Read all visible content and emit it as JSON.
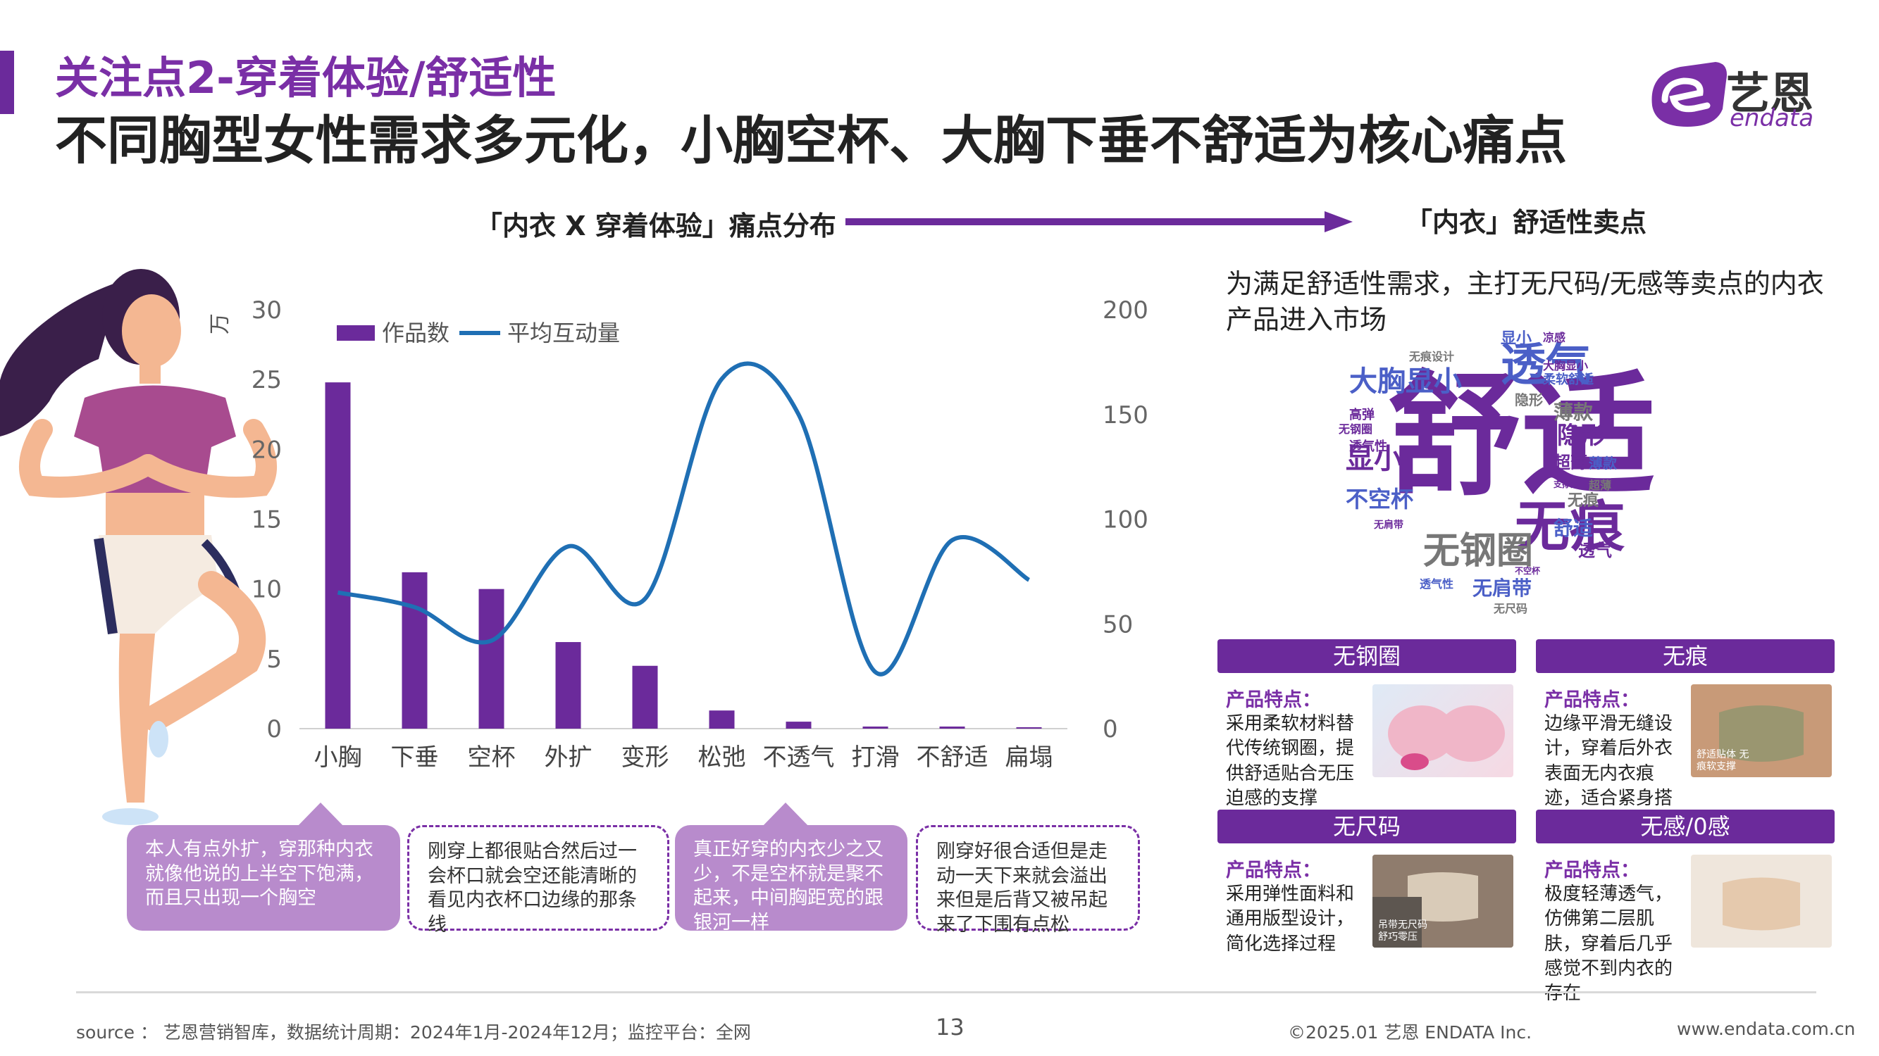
{
  "header": {
    "title_line1": "关注点2-穿着体验/舒适性",
    "title_line2": "不同胸型女性需求多元化，小胸空杯、大胸下垂不舒适为核心痛点",
    "brand_name": "艺恩",
    "brand_sub": "endata",
    "brand_color": "#7a2fa6"
  },
  "sections": {
    "left_title": "「内衣 X 穿着体验」痛点分布",
    "right_title": "「内衣」舒适性卖点"
  },
  "chart_data": {
    "type": "bar",
    "categories": [
      "小胸",
      "下垂",
      "空杯",
      "外扩",
      "变形",
      "松弛",
      "不透气",
      "打滑",
      "不舒适",
      "扁塌"
    ],
    "series": [
      {
        "name": "作品数",
        "kind": "bar",
        "axis": "left",
        "color": "#6b2a9b",
        "values": [
          24.8,
          11.2,
          10.0,
          6.2,
          4.5,
          1.3,
          0.5,
          0.15,
          0.15,
          0.1
        ]
      },
      {
        "name": "平均互动量",
        "kind": "line",
        "axis": "right",
        "color": "#1f6fb4",
        "values": [
          65,
          58,
          42,
          87,
          62,
          167,
          150,
          27,
          90,
          71
        ]
      }
    ],
    "left_axis": {
      "unit": "万",
      "ylim": [
        0,
        30
      ],
      "ticks": [
        "0",
        "5",
        "10",
        "15",
        "20",
        "25",
        "30"
      ]
    },
    "right_axis": {
      "ylim": [
        0,
        200
      ],
      "ticks": [
        "0",
        "50",
        "100",
        "150",
        "200"
      ]
    },
    "legend_position": "top-left"
  },
  "bubbles": [
    {
      "style": "filled",
      "text": "本人有点外扩，穿那种内衣就像他说的上半空下饱满，而且只出现一个胸空"
    },
    {
      "style": "dashed",
      "text": "刚穿上都很贴合然后过一会杯口就会空还能清晰的看见内衣杯口边缘的那条线"
    },
    {
      "style": "filled",
      "text": "真正好穿的内衣少之又少，不是空杯就是聚不起来，中间胸距宽的跟银河一样"
    },
    {
      "style": "dashed",
      "text": "刚穿好很合适但是走动一天下来就会溢出来但是后背又被吊起来了下围有点松"
    }
  ],
  "right_panel": {
    "description": "为满足舒适性需求，主打无尺码/无感等卖点的内衣产品进入市场",
    "word_cloud": [
      {
        "text": "舒适",
        "color": "#6b2a9b"
      },
      {
        "text": "透气",
        "color": "#4b5fc7"
      },
      {
        "text": "无痕",
        "color": "#6b2a9b"
      },
      {
        "text": "无钢圈",
        "color": "#777777"
      },
      {
        "text": "大胸显小",
        "color": "#4b5fc7"
      },
      {
        "text": "显小",
        "color": "#6b2a9b"
      },
      {
        "text": "不空杯",
        "color": "#4b5fc7"
      },
      {
        "text": "隐形",
        "color": "#6b2a9b"
      },
      {
        "text": "薄款",
        "color": "#777777"
      },
      {
        "text": "无肩带",
        "color": "#4b5fc7"
      },
      {
        "text": "舒适",
        "color": "#4b5fc7"
      },
      {
        "text": "超薄",
        "color": "#6b2a9b"
      },
      {
        "text": "无痕",
        "color": "#777777"
      },
      {
        "text": "透气性",
        "color": "#6b2a9b"
      },
      {
        "text": "高弹",
        "color": "#6b2a9b"
      },
      {
        "text": "无钢圈",
        "color": "#6b2a9b"
      },
      {
        "text": "透气",
        "color": "#6b2a9b"
      },
      {
        "text": "显小",
        "color": "#4b5fc7"
      },
      {
        "text": "凉感",
        "color": "#6b2a9b"
      },
      {
        "text": "隐形",
        "color": "#777777"
      },
      {
        "text": "大胸显小",
        "color": "#6b2a9b"
      },
      {
        "text": "柔软舒适",
        "color": "#4b5fc7"
      },
      {
        "text": "薄款",
        "color": "#4b5fc7"
      },
      {
        "text": "超薄",
        "color": "#777777"
      },
      {
        "text": "无痕设计",
        "color": "#777777"
      },
      {
        "text": "支撑力",
        "color": "#6b2a9b"
      },
      {
        "text": "无肩带",
        "color": "#6b2a9b"
      },
      {
        "text": "透气性",
        "color": "#4b5fc7"
      },
      {
        "text": "无尺码",
        "color": "#777777"
      },
      {
        "text": "不空杯",
        "color": "#6b2a9b"
      }
    ],
    "cards": [
      {
        "title": "无钢圈",
        "label": "产品特点：",
        "text": "采用柔软材料替代传统钢圈，提供舒适贴合无压迫感的支撑",
        "image_alt": ""
      },
      {
        "title": "无痕",
        "label": "产品特点：",
        "text": "边缘平滑无缝设计，穿着后外衣表面无内衣痕迹，适合紧身搭配",
        "image_alt": "舒适贴体 无痕软支撑"
      },
      {
        "title": "无尺码",
        "label": "产品特点：",
        "text": "采用弹性面料和通用版型设计，简化选择过程",
        "image_alt": "吊带无尺码 舒巧零压"
      },
      {
        "title": "无感/0感",
        "label": "产品特点：",
        "text": "极度轻薄透气，仿佛第二层肌肤，穿着后几乎感觉不到内衣的存在",
        "image_alt": ""
      }
    ]
  },
  "footer": {
    "source": "source ：  艺恩营销智库，数据统计周期：2024年1月-2024年12月；监控平台：全网",
    "page": "13",
    "copyright": "©2025.01  艺恩 ENDATA Inc.",
    "url": "www.endata.com.cn"
  }
}
